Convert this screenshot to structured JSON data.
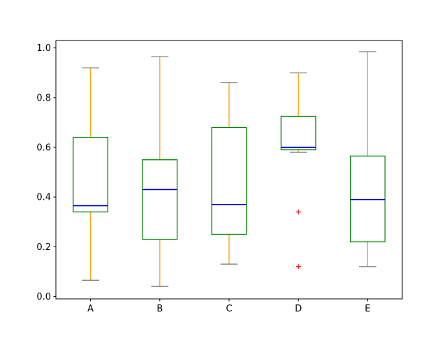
{
  "figure": {
    "background": "#ffffff"
  },
  "chart_data": {
    "type": "boxplot",
    "title": "",
    "xlabel": "",
    "ylabel": "",
    "categories": [
      "A",
      "B",
      "C",
      "D",
      "E"
    ],
    "series": [
      {
        "category": "A",
        "whisker_low": 0.065,
        "q1": 0.34,
        "median": 0.365,
        "q3": 0.64,
        "whisker_high": 0.92,
        "fliers": []
      },
      {
        "category": "B",
        "whisker_low": 0.04,
        "q1": 0.23,
        "median": 0.43,
        "q3": 0.55,
        "whisker_high": 0.965,
        "fliers": []
      },
      {
        "category": "C",
        "whisker_low": 0.13,
        "q1": 0.25,
        "median": 0.37,
        "q3": 0.68,
        "whisker_high": 0.86,
        "fliers": []
      },
      {
        "category": "D",
        "whisker_low": 0.58,
        "q1": 0.59,
        "median": 0.6,
        "q3": 0.725,
        "whisker_high": 0.9,
        "fliers": [
          0.34,
          0.12
        ]
      },
      {
        "category": "E",
        "whisker_low": 0.12,
        "q1": 0.22,
        "median": 0.39,
        "q3": 0.565,
        "whisker_high": 0.985,
        "fliers": []
      }
    ],
    "yticks": [
      0.0,
      0.2,
      0.4,
      0.6,
      0.8,
      1.0
    ],
    "ytick_labels": [
      "0.0",
      "0.2",
      "0.4",
      "0.6",
      "0.8",
      "1.0"
    ],
    "ylim": [
      -0.01,
      1.03
    ],
    "grid": false,
    "legend_position": "none",
    "colors": {
      "box": "#008000",
      "median": "#0000cd",
      "whisker": "#ffa500",
      "cap": "#808080",
      "flier": "#ff0000",
      "spine": "#000000",
      "text": "#000000",
      "background": "#ffffff"
    }
  }
}
